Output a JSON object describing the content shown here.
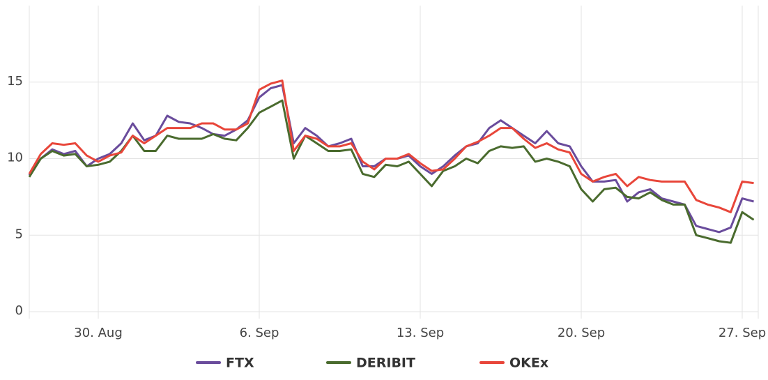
{
  "chart_data": {
    "type": "line",
    "categories": [
      null,
      null,
      null,
      null,
      null,
      null,
      "30. Aug",
      null,
      null,
      null,
      null,
      null,
      null,
      null,
      null,
      null,
      null,
      null,
      null,
      null,
      "6. Sep",
      null,
      null,
      null,
      null,
      null,
      null,
      null,
      null,
      null,
      null,
      null,
      null,
      null,
      "13. Sep",
      null,
      null,
      null,
      null,
      null,
      null,
      null,
      null,
      null,
      null,
      null,
      null,
      null,
      "20. Sep",
      null,
      null,
      null,
      null,
      null,
      null,
      null,
      null,
      null,
      null,
      null,
      null,
      null,
      "27. Sep",
      null
    ],
    "series": [
      {
        "name": "FTX",
        "color": "#6a4c9c",
        "values": [
          8.9,
          10.0,
          10.6,
          10.3,
          10.5,
          9.5,
          10.0,
          10.3,
          11.0,
          12.3,
          11.2,
          11.5,
          12.8,
          12.4,
          12.3,
          12.0,
          11.6,
          11.5,
          11.9,
          12.5,
          14.0,
          14.6,
          14.8,
          11.0,
          12.0,
          11.5,
          10.8,
          11.0,
          11.3,
          9.5,
          9.5,
          10.0,
          10.0,
          10.2,
          9.5,
          9.0,
          9.5,
          10.2,
          10.8,
          11.0,
          12.0,
          12.5,
          12.0,
          11.5,
          11.0,
          11.8,
          11.0,
          10.8,
          9.5,
          8.5,
          8.5,
          8.6,
          7.2,
          7.8,
          8.0,
          7.4,
          7.2,
          7.0,
          5.6,
          5.4,
          5.2,
          5.5,
          7.4,
          7.2
        ]
      },
      {
        "name": "DERIBIT",
        "color": "#4a6b2e",
        "values": [
          8.8,
          10.0,
          10.5,
          10.2,
          10.3,
          9.5,
          9.6,
          9.8,
          10.5,
          11.5,
          10.5,
          10.5,
          11.5,
          11.3,
          11.3,
          11.3,
          11.6,
          11.3,
          11.2,
          12.0,
          13.0,
          13.4,
          13.8,
          10.0,
          11.5,
          11.0,
          10.5,
          10.5,
          10.6,
          9.0,
          8.8,
          9.6,
          9.5,
          9.8,
          9.0,
          8.2,
          9.2,
          9.5,
          10.0,
          9.7,
          10.5,
          10.8,
          10.7,
          10.8,
          9.8,
          10.0,
          9.8,
          9.5,
          8.0,
          7.2,
          8.0,
          8.1,
          7.5,
          7.4,
          7.8,
          7.3,
          7.0,
          7.0,
          5.0,
          4.8,
          4.6,
          4.5,
          6.5,
          6.0
        ]
      },
      {
        "name": "OKEx",
        "color": "#e8463a",
        "values": [
          9.0,
          10.3,
          11.0,
          10.9,
          11.0,
          10.2,
          9.8,
          10.2,
          10.4,
          11.5,
          11.0,
          11.5,
          12.0,
          12.0,
          12.0,
          12.3,
          12.3,
          11.9,
          11.9,
          12.3,
          14.5,
          14.9,
          15.1,
          10.5,
          11.5,
          11.3,
          10.8,
          10.8,
          11.0,
          9.8,
          9.3,
          10.0,
          10.0,
          10.3,
          9.7,
          9.2,
          9.3,
          10.0,
          10.8,
          11.1,
          11.5,
          12.0,
          12.0,
          11.3,
          10.7,
          11.0,
          10.6,
          10.4,
          9.0,
          8.5,
          8.8,
          9.0,
          8.2,
          8.8,
          8.6,
          8.5,
          8.5,
          8.5,
          7.3,
          7.0,
          6.8,
          6.5,
          8.5,
          8.4
        ]
      }
    ],
    "ylim": [
      0,
      20
    ],
    "yticks": [
      0,
      5,
      10,
      15
    ],
    "grid": true
  }
}
